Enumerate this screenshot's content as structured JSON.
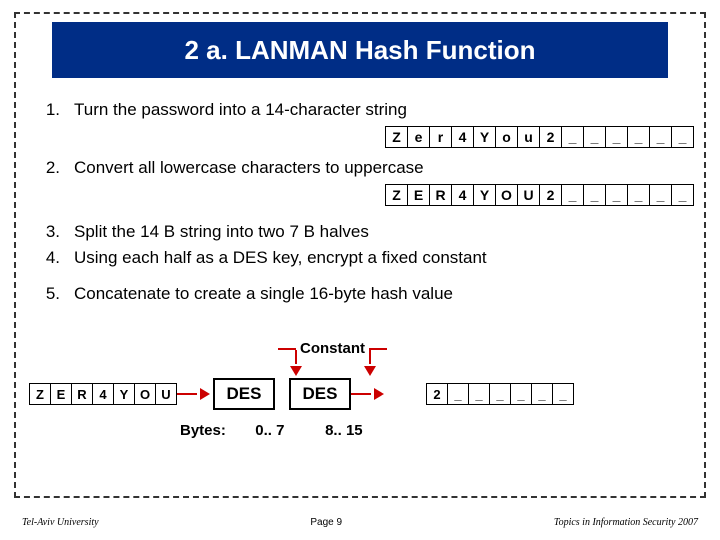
{
  "title": "2 a. LANMAN Hash Function",
  "items": [
    {
      "n": "1.",
      "text": "Turn the password into a 14-character string"
    },
    {
      "n": "2.",
      "text": "Convert all lowercase characters to uppercase"
    },
    {
      "n": "3.",
      "text": "Split the 14 B string into two 7 B halves"
    },
    {
      "n": "4.",
      "text": "Using each half as a DES key, encrypt a fixed constant"
    },
    {
      "n": "5.",
      "text": "Concatenate to create a single 16-byte hash value"
    }
  ],
  "row1": [
    "Z",
    "e",
    "r",
    "4",
    "Y",
    "o",
    "u",
    "2",
    "_",
    "_",
    "_",
    "_",
    "_",
    "_"
  ],
  "row2": [
    "Z",
    "E",
    "R",
    "4",
    "Y",
    "O",
    "U",
    "2",
    "_",
    "_",
    "_",
    "_",
    "_",
    "_"
  ],
  "constant_label": "Constant",
  "key_cells": [
    "Z",
    "E",
    "R",
    "4",
    "Y",
    "O",
    "U"
  ],
  "des_label": "DES",
  "out_cells": [
    "2",
    "_",
    "_",
    "_",
    "_",
    "_",
    "_"
  ],
  "bytes_label": "Bytes:",
  "byte_ranges": [
    "0.. 7",
    "8.. 15"
  ],
  "footer_left": "Tel-Aviv University",
  "footer_center": "Page 9",
  "footer_right": "Topics in Information Security 2007",
  "colors": {
    "title_bg": "#002d86",
    "accent": "#cc0000",
    "border": "#000000",
    "text": "#000000",
    "bg": "#ffffff"
  }
}
